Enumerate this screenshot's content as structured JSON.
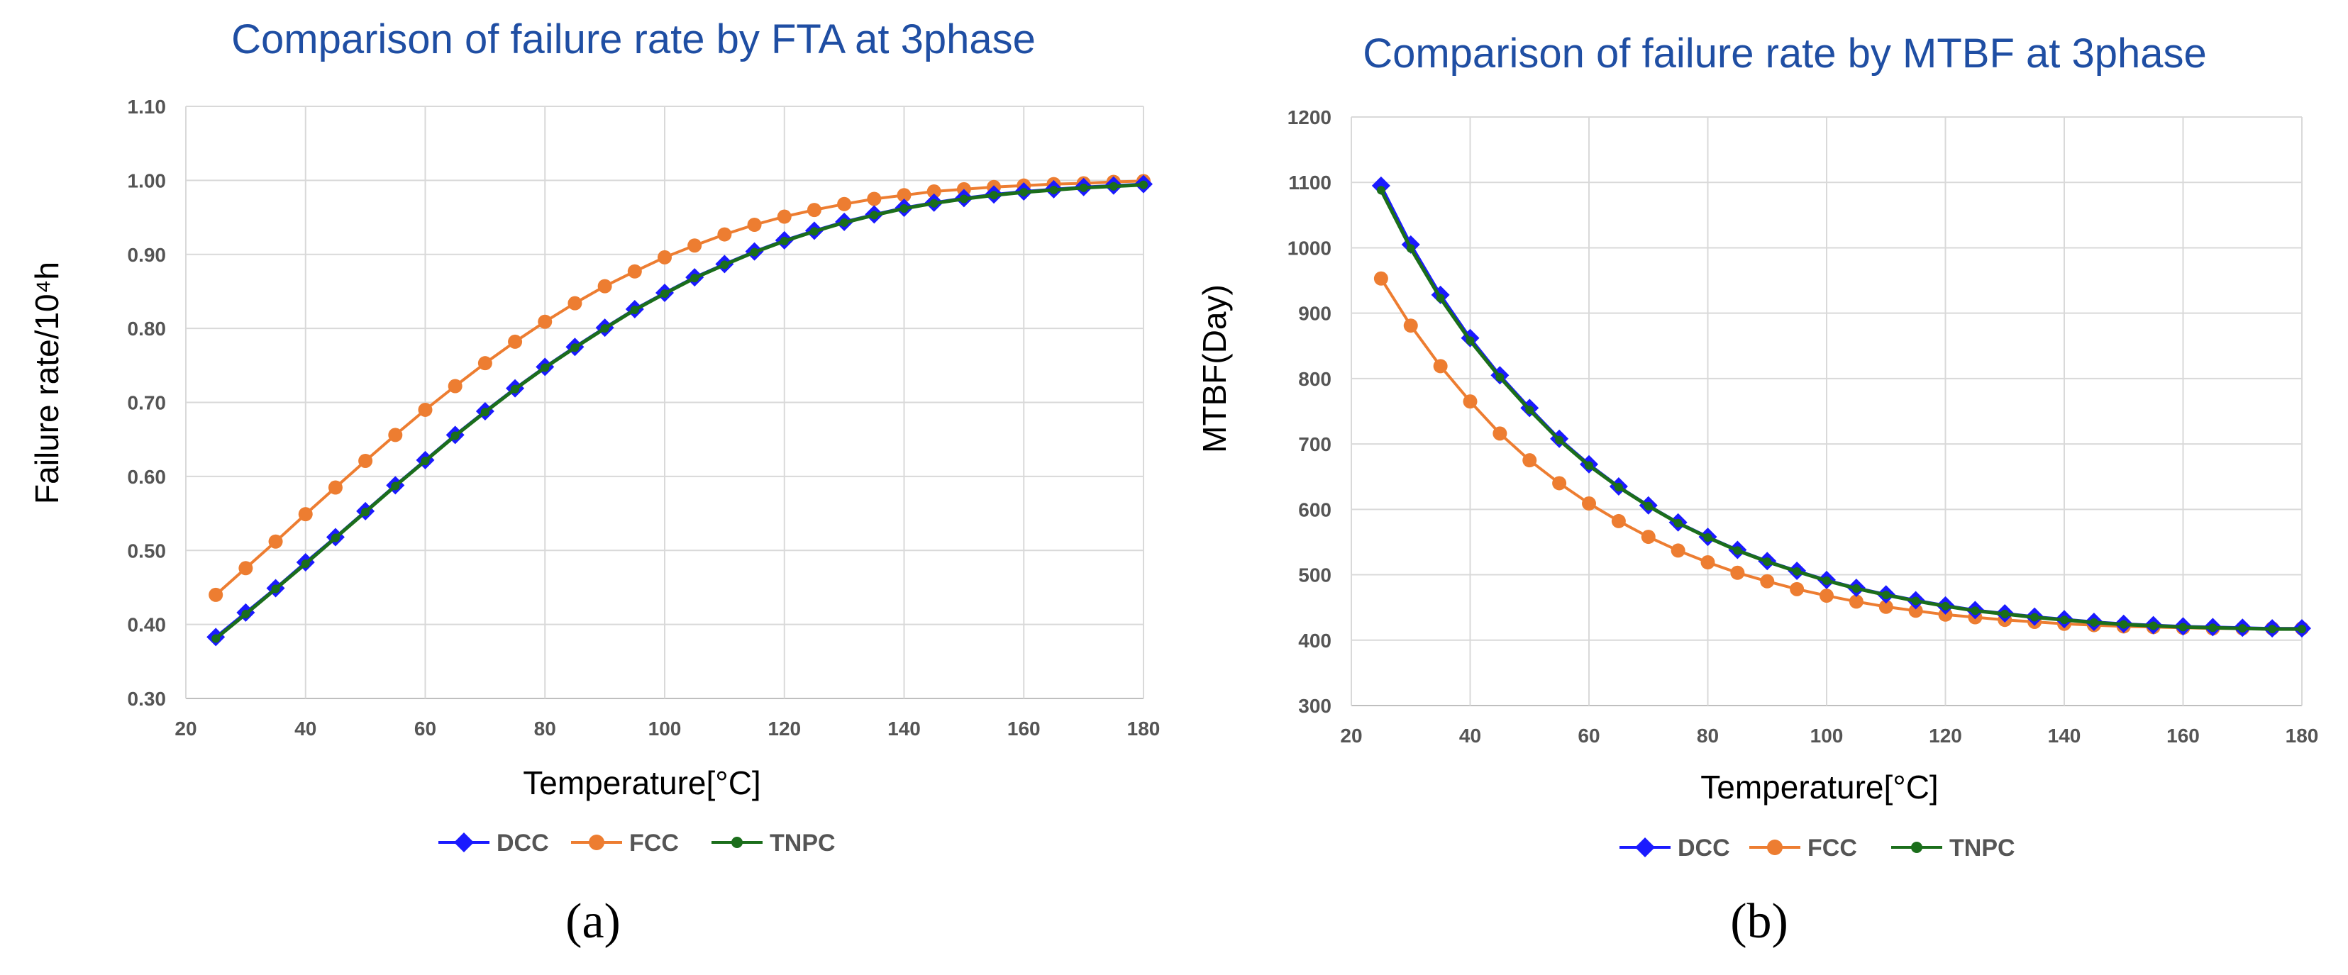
{
  "colors": {
    "DCC": "#1a1aff",
    "FCC": "#ed7d31",
    "TNPC": "#1b6e1b",
    "title": "#1f4ea3"
  },
  "chart_data": [
    {
      "type": "line",
      "panel_label": "(a)",
      "title": "Comparison of failure rate by FTA at 3phase",
      "xlabel": "Temperature[°C]",
      "ylabel": "Failure rate/10⁴h",
      "xlim": [
        20,
        180
      ],
      "ylim": [
        0.3,
        1.1
      ],
      "xticks": [
        20,
        40,
        60,
        80,
        100,
        120,
        140,
        160,
        180
      ],
      "yticks": [
        0.3,
        0.4,
        0.5,
        0.6,
        0.7,
        0.8,
        0.9,
        1.0,
        1.1
      ],
      "ytick_labels": [
        "0.30",
        "0.40",
        "0.50",
        "0.60",
        "0.70",
        "0.80",
        "0.90",
        "1.00",
        "1.10"
      ],
      "grid": true,
      "legend": "bottom-center",
      "x": [
        25,
        30,
        35,
        40,
        45,
        50,
        55,
        60,
        65,
        70,
        75,
        80,
        85,
        90,
        95,
        100,
        105,
        110,
        115,
        120,
        125,
        130,
        135,
        140,
        145,
        150,
        155,
        160,
        165,
        170,
        175,
        180
      ],
      "series": [
        {
          "name": "DCC",
          "marker": "diamond",
          "values": [
            0.383,
            0.416,
            0.449,
            0.484,
            0.518,
            0.553,
            0.588,
            0.622,
            0.656,
            0.688,
            0.719,
            0.748,
            0.775,
            0.801,
            0.826,
            0.848,
            0.869,
            0.887,
            0.904,
            0.919,
            0.932,
            0.944,
            0.954,
            0.963,
            0.97,
            0.976,
            0.981,
            0.985,
            0.988,
            0.991,
            0.993,
            0.995
          ]
        },
        {
          "name": "FCC",
          "marker": "circle",
          "values": [
            0.44,
            0.476,
            0.512,
            0.549,
            0.585,
            0.621,
            0.656,
            0.69,
            0.722,
            0.753,
            0.782,
            0.809,
            0.834,
            0.857,
            0.877,
            0.896,
            0.912,
            0.927,
            0.94,
            0.951,
            0.96,
            0.968,
            0.975,
            0.98,
            0.985,
            0.988,
            0.991,
            0.993,
            0.995,
            0.996,
            0.998,
            0.999
          ]
        },
        {
          "name": "TNPC",
          "marker": "smallcircle",
          "values": [
            0.381,
            0.414,
            0.448,
            0.482,
            0.517,
            0.552,
            0.587,
            0.621,
            0.655,
            0.687,
            0.718,
            0.747,
            0.774,
            0.8,
            0.825,
            0.847,
            0.868,
            0.886,
            0.903,
            0.918,
            0.931,
            0.943,
            0.953,
            0.962,
            0.969,
            0.975,
            0.98,
            0.984,
            0.987,
            0.99,
            0.992,
            0.994
          ]
        }
      ]
    },
    {
      "type": "line",
      "panel_label": "(b)",
      "title": "Comparison of failure rate by MTBF at 3phase",
      "xlabel": "Temperature[°C]",
      "ylabel": "MTBF(Day)",
      "xlim": [
        20,
        180
      ],
      "ylim": [
        300,
        1200
      ],
      "xticks": [
        20,
        40,
        60,
        80,
        100,
        120,
        140,
        160,
        180
      ],
      "yticks": [
        300,
        400,
        500,
        600,
        700,
        800,
        900,
        1000,
        1100,
        1200
      ],
      "ytick_labels": [
        "300",
        "400",
        "500",
        "600",
        "700",
        "800",
        "900",
        "1000",
        "1100",
        "1200"
      ],
      "grid": true,
      "legend": "bottom-center",
      "x": [
        25,
        30,
        35,
        40,
        45,
        50,
        55,
        60,
        65,
        70,
        75,
        80,
        85,
        90,
        95,
        100,
        105,
        110,
        115,
        120,
        125,
        130,
        135,
        140,
        145,
        150,
        155,
        160,
        165,
        170,
        175,
        180
      ],
      "series": [
        {
          "name": "DCC",
          "marker": "diamond",
          "values": [
            1095,
            1005,
            928,
            862,
            805,
            755,
            708,
            669,
            635,
            606,
            580,
            558,
            538,
            521,
            506,
            492,
            480,
            470,
            461,
            453,
            446,
            441,
            436,
            432,
            428,
            425,
            423,
            421,
            420,
            419,
            418,
            418
          ]
        },
        {
          "name": "FCC",
          "marker": "circle",
          "values": [
            953,
            881,
            819,
            765,
            716,
            675,
            640,
            609,
            582,
            558,
            537,
            519,
            503,
            490,
            478,
            468,
            459,
            451,
            445,
            439,
            435,
            431,
            428,
            425,
            423,
            421,
            420,
            419,
            418,
            418,
            418,
            418
          ]
        },
        {
          "name": "TNPC",
          "marker": "smallcircle",
          "values": [
            1088,
            999,
            923,
            858,
            802,
            752,
            706,
            667,
            634,
            605,
            579,
            557,
            537,
            520,
            505,
            491,
            479,
            469,
            460,
            452,
            445,
            440,
            435,
            431,
            427,
            424,
            422,
            420,
            419,
            418,
            417,
            417
          ]
        }
      ]
    }
  ]
}
